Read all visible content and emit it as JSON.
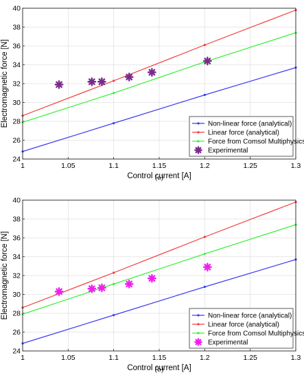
{
  "chart_data": [
    {
      "type": "line",
      "caption": "(a)",
      "xlabel": "Control current [A]",
      "ylabel": "Electromagnetic force [N]",
      "xlim": [
        1,
        1.3
      ],
      "ylim": [
        24,
        40
      ],
      "xticks": [
        "1",
        "1.05",
        "1.1",
        "1.15",
        "1.2",
        "1.25",
        "1.3"
      ],
      "yticks": [
        "24",
        "26",
        "28",
        "30",
        "32",
        "34",
        "36",
        "38",
        "40"
      ],
      "grid": true,
      "legend_position": "bottom-right",
      "series": [
        {
          "name": "Non-linear force (analytical)",
          "color": "#3a3af5",
          "marker": "dot",
          "x": [
            1.0,
            1.1,
            1.2,
            1.3
          ],
          "y": [
            24.8,
            27.8,
            30.8,
            33.7
          ]
        },
        {
          "name": "Linear force (analytical)",
          "color": "#f23a3a",
          "marker": "dot",
          "x": [
            1.0,
            1.1,
            1.2,
            1.3
          ],
          "y": [
            28.6,
            32.3,
            36.1,
            39.8
          ]
        },
        {
          "name": "Force from Comsol Multiphysics",
          "color": "#3af03a",
          "marker": "dot",
          "x": [
            1.0,
            1.1,
            1.2,
            1.3
          ],
          "y": [
            27.9,
            31.0,
            34.3,
            37.4
          ]
        },
        {
          "name": "Experimental",
          "color": "#7a2a8c",
          "marker": "star",
          "line": false,
          "x": [
            1.04,
            1.076,
            1.087,
            1.117,
            1.142,
            1.203
          ],
          "y": [
            31.9,
            32.2,
            32.2,
            32.7,
            33.2,
            34.4
          ]
        }
      ]
    },
    {
      "type": "line",
      "caption": "(b)",
      "xlabel": "Control current [A]",
      "ylabel": "Electromagnetic force [N]",
      "xlim": [
        1,
        1.3
      ],
      "ylim": [
        24,
        40
      ],
      "xticks": [
        "1",
        "1.05",
        "1.1",
        "1.15",
        "1.2",
        "1.25",
        "1.3"
      ],
      "yticks": [
        "24",
        "26",
        "28",
        "30",
        "32",
        "34",
        "36",
        "38",
        "40"
      ],
      "grid": true,
      "legend_position": "bottom-right",
      "series": [
        {
          "name": "Non-linear force (analytical)",
          "color": "#3a3af5",
          "marker": "dot",
          "x": [
            1.0,
            1.1,
            1.2,
            1.3
          ],
          "y": [
            24.8,
            27.8,
            30.8,
            33.7
          ]
        },
        {
          "name": "Linear force (analytical)",
          "color": "#f23a3a",
          "marker": "dot",
          "x": [
            1.0,
            1.1,
            1.2,
            1.3
          ],
          "y": [
            28.6,
            32.3,
            36.1,
            39.8
          ]
        },
        {
          "name": "Force from Comsol Multiphysics",
          "color": "#3af03a",
          "marker": "dot",
          "x": [
            1.0,
            1.1,
            1.2,
            1.3
          ],
          "y": [
            27.9,
            31.1,
            34.3,
            37.4
          ]
        },
        {
          "name": "Experimental",
          "color": "#f01ef0",
          "marker": "star",
          "line": false,
          "x": [
            1.04,
            1.076,
            1.087,
            1.117,
            1.142,
            1.203
          ],
          "y": [
            30.3,
            30.6,
            30.7,
            31.1,
            31.7,
            32.9
          ]
        }
      ]
    }
  ]
}
